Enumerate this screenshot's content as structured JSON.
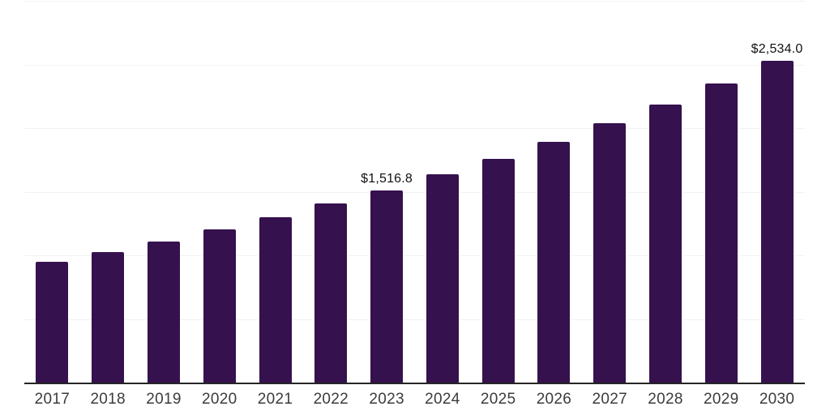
{
  "chart_data": {
    "type": "bar",
    "title": "",
    "xlabel": "",
    "ylabel": "",
    "categories": [
      "2017",
      "2018",
      "2019",
      "2020",
      "2021",
      "2022",
      "2023",
      "2024",
      "2025",
      "2026",
      "2027",
      "2028",
      "2029",
      "2030"
    ],
    "values": [
      956.6,
      1032.6,
      1115.0,
      1210.0,
      1305.0,
      1412.7,
      1516.8,
      1645.2,
      1767.5,
      1898.6,
      2041.8,
      2193.8,
      2356.6,
      2534.0
    ],
    "value_labels": {
      "2023": "$1,516.8",
      "2030": "$2,534.0"
    },
    "ylim": [
      0,
      3000
    ],
    "gridlines": [
      500,
      1000,
      1500,
      2000,
      2500,
      3000
    ],
    "grid": true,
    "legend": false,
    "y_axis_labels_visible": false,
    "colors": {
      "bar": "#35114e",
      "axis": "#262626",
      "gridline": "#f2f2f2",
      "tick_label": "#3c3c3c",
      "value_label": "#111111",
      "background": "#ffffff"
    }
  }
}
